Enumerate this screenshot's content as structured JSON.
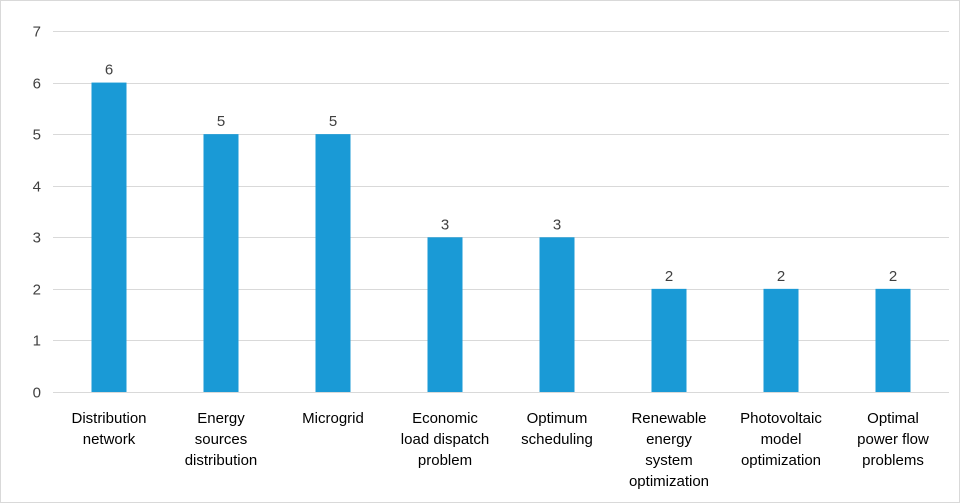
{
  "chart_data": {
    "type": "bar",
    "title": "",
    "xlabel": "",
    "ylabel": "",
    "ylim": [
      0,
      7
    ],
    "yticks": [
      "0",
      "1",
      "2",
      "3",
      "4",
      "5",
      "6",
      "7"
    ],
    "grid": true,
    "bar_color": "#1a9ad6",
    "categories": [
      [
        "Distribution",
        "network"
      ],
      [
        "Energy",
        "sources",
        "distribution"
      ],
      [
        "Microgrid"
      ],
      [
        "Economic",
        "load dispatch",
        "problem"
      ],
      [
        "Optimum",
        "scheduling"
      ],
      [
        "Renewable",
        "energy",
        "system",
        "optimization"
      ],
      [
        "Photovoltaic",
        "model",
        "optimization"
      ],
      [
        "Optimal",
        "power flow",
        "problems"
      ]
    ],
    "values": [
      6,
      5,
      5,
      3,
      3,
      2,
      2,
      2
    ],
    "data_labels": [
      "6",
      "5",
      "5",
      "3",
      "3",
      "2",
      "2",
      "2"
    ]
  }
}
